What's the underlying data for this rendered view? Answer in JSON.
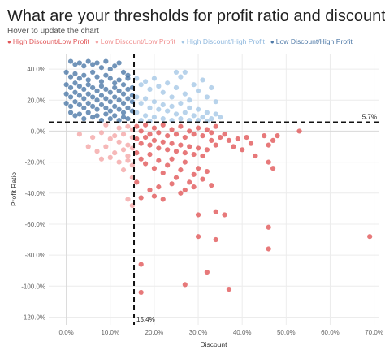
{
  "header": {
    "title": "What are your thresholds for profit ratio and discount?",
    "subtitle": "Hover to update the chart"
  },
  "legend": [
    {
      "label": "High Discount/Low Profit",
      "color": "#e15759"
    },
    {
      "label": "Low Discount/Low Profit",
      "color": "#f4a6a6"
    },
    {
      "label": "High Discount/High Profit",
      "color": "#a6c8e6"
    },
    {
      "label": "Low Discount/High Profit",
      "color": "#4e79a7"
    }
  ],
  "chart_data": {
    "type": "scatter",
    "xlabel": "Discount",
    "ylabel": "Profit Ratio",
    "xlim": [
      -0.04,
      0.71
    ],
    "ylim": [
      -1.25,
      0.5
    ],
    "x_ticks": [
      0,
      0.1,
      0.2,
      0.3,
      0.4,
      0.5,
      0.6,
      0.7
    ],
    "x_tick_labels": [
      "0.0%",
      "10.0%",
      "20.0%",
      "30.0%",
      "40.0%",
      "50.0%",
      "60.0%",
      "70.0%"
    ],
    "y_ticks": [
      0.4,
      0.2,
      0,
      -0.2,
      -0.4,
      -0.6,
      -0.8,
      -1.0,
      -1.2
    ],
    "y_tick_labels": [
      "40.0%",
      "20.0%",
      "0.0%",
      "-20.0%",
      "-40.0%",
      "-60.0%",
      "-80.0%",
      "-100.0%",
      "-120.0%"
    ],
    "grid": true,
    "reference_lines": {
      "discount": 0.154,
      "discount_label": "15.4%",
      "profit_ratio": 0.057,
      "profit_ratio_label": "5.7%"
    },
    "colors": {
      "high_disc_low_profit": "#e15759",
      "low_disc_low_profit": "#f4a6a6",
      "high_disc_high_profit": "#a6c8e6",
      "low_disc_high_profit": "#4e79a7"
    },
    "series": [
      {
        "name": "Low Discount/High Profit",
        "points": [
          [
            0.01,
            0.45
          ],
          [
            0.02,
            0.43
          ],
          [
            0.03,
            0.44
          ],
          [
            0.04,
            0.42
          ],
          [
            0.05,
            0.45
          ],
          [
            0.06,
            0.43
          ],
          [
            0.07,
            0.44
          ],
          [
            0.08,
            0.41
          ],
          [
            0.09,
            0.45
          ],
          [
            0.1,
            0.4
          ],
          [
            0.11,
            0.42
          ],
          [
            0.12,
            0.44
          ],
          [
            0.13,
            0.38
          ],
          [
            0.14,
            0.36
          ],
          [
            0.0,
            0.38
          ],
          [
            0.01,
            0.35
          ],
          [
            0.02,
            0.37
          ],
          [
            0.03,
            0.34
          ],
          [
            0.04,
            0.36
          ],
          [
            0.05,
            0.33
          ],
          [
            0.06,
            0.38
          ],
          [
            0.07,
            0.35
          ],
          [
            0.08,
            0.32
          ],
          [
            0.09,
            0.36
          ],
          [
            0.1,
            0.34
          ],
          [
            0.11,
            0.31
          ],
          [
            0.12,
            0.33
          ],
          [
            0.13,
            0.3
          ],
          [
            0.14,
            0.34
          ],
          [
            0.15,
            0.28
          ],
          [
            0.0,
            0.3
          ],
          [
            0.01,
            0.28
          ],
          [
            0.02,
            0.31
          ],
          [
            0.03,
            0.29
          ],
          [
            0.04,
            0.27
          ],
          [
            0.05,
            0.3
          ],
          [
            0.06,
            0.28
          ],
          [
            0.07,
            0.26
          ],
          [
            0.08,
            0.29
          ],
          [
            0.09,
            0.27
          ],
          [
            0.1,
            0.25
          ],
          [
            0.11,
            0.28
          ],
          [
            0.12,
            0.26
          ],
          [
            0.13,
            0.24
          ],
          [
            0.14,
            0.27
          ],
          [
            0.15,
            0.23
          ],
          [
            0.0,
            0.24
          ],
          [
            0.01,
            0.22
          ],
          [
            0.02,
            0.25
          ],
          [
            0.03,
            0.23
          ],
          [
            0.04,
            0.21
          ],
          [
            0.05,
            0.24
          ],
          [
            0.06,
            0.22
          ],
          [
            0.07,
            0.2
          ],
          [
            0.08,
            0.23
          ],
          [
            0.09,
            0.21
          ],
          [
            0.1,
            0.19
          ],
          [
            0.11,
            0.22
          ],
          [
            0.12,
            0.2
          ],
          [
            0.13,
            0.18
          ],
          [
            0.14,
            0.21
          ],
          [
            0.15,
            0.19
          ],
          [
            0.0,
            0.18
          ],
          [
            0.01,
            0.16
          ],
          [
            0.02,
            0.19
          ],
          [
            0.03,
            0.17
          ],
          [
            0.04,
            0.15
          ],
          [
            0.05,
            0.18
          ],
          [
            0.06,
            0.16
          ],
          [
            0.07,
            0.14
          ],
          [
            0.08,
            0.17
          ],
          [
            0.09,
            0.15
          ],
          [
            0.1,
            0.13
          ],
          [
            0.11,
            0.16
          ],
          [
            0.12,
            0.14
          ],
          [
            0.13,
            0.12
          ],
          [
            0.14,
            0.15
          ],
          [
            0.15,
            0.13
          ],
          [
            0.01,
            0.12
          ],
          [
            0.03,
            0.11
          ],
          [
            0.05,
            0.12
          ],
          [
            0.07,
            0.1
          ],
          [
            0.09,
            0.11
          ],
          [
            0.11,
            0.1
          ],
          [
            0.13,
            0.09
          ],
          [
            0.06,
            0.09
          ],
          [
            0.1,
            0.08
          ],
          [
            0.14,
            0.08
          ],
          [
            0.08,
            0.07
          ],
          [
            0.12,
            0.07
          ],
          [
            0.02,
            0.1
          ],
          [
            0.04,
            0.08
          ]
        ]
      },
      {
        "name": "High Discount/High Profit",
        "points": [
          [
            0.16,
            0.34
          ],
          [
            0.17,
            0.3
          ],
          [
            0.18,
            0.32
          ],
          [
            0.19,
            0.27
          ],
          [
            0.2,
            0.34
          ],
          [
            0.21,
            0.29
          ],
          [
            0.22,
            0.25
          ],
          [
            0.23,
            0.31
          ],
          [
            0.24,
            0.22
          ],
          [
            0.25,
            0.38
          ],
          [
            0.25,
            0.28
          ],
          [
            0.26,
            0.35
          ],
          [
            0.27,
            0.24
          ],
          [
            0.27,
            0.38
          ],
          [
            0.28,
            0.2
          ],
          [
            0.29,
            0.3
          ],
          [
            0.3,
            0.26
          ],
          [
            0.31,
            0.33
          ],
          [
            0.32,
            0.22
          ],
          [
            0.33,
            0.28
          ],
          [
            0.34,
            0.19
          ],
          [
            0.16,
            0.22
          ],
          [
            0.17,
            0.18
          ],
          [
            0.18,
            0.21
          ],
          [
            0.19,
            0.15
          ],
          [
            0.2,
            0.19
          ],
          [
            0.21,
            0.14
          ],
          [
            0.22,
            0.17
          ],
          [
            0.23,
            0.13
          ],
          [
            0.24,
            0.16
          ],
          [
            0.25,
            0.11
          ],
          [
            0.26,
            0.18
          ],
          [
            0.27,
            0.12
          ],
          [
            0.28,
            0.15
          ],
          [
            0.29,
            0.1
          ],
          [
            0.3,
            0.14
          ],
          [
            0.31,
            0.09
          ],
          [
            0.32,
            0.12
          ],
          [
            0.33,
            0.08
          ],
          [
            0.34,
            0.11
          ],
          [
            0.35,
            0.09
          ],
          [
            0.16,
            0.12
          ],
          [
            0.18,
            0.1
          ],
          [
            0.2,
            0.09
          ],
          [
            0.22,
            0.08
          ],
          [
            0.24,
            0.07
          ],
          [
            0.26,
            0.08
          ],
          [
            0.28,
            0.07
          ],
          [
            0.3,
            0.07
          ],
          [
            0.32,
            0.065
          ],
          [
            0.17,
            0.07
          ],
          [
            0.19,
            0.065
          ]
        ]
      },
      {
        "name": "Low Discount/Low Profit",
        "points": [
          [
            0.03,
            -0.02
          ],
          [
            0.06,
            -0.04
          ],
          [
            0.08,
            -0.01
          ],
          [
            0.1,
            -0.05
          ],
          [
            0.11,
            -0.03
          ],
          [
            0.12,
            -0.07
          ],
          [
            0.13,
            -0.02
          ],
          [
            0.14,
            -0.09
          ],
          [
            0.15,
            -0.04
          ],
          [
            0.05,
            -0.1
          ],
          [
            0.07,
            -0.13
          ],
          [
            0.09,
            -0.1
          ],
          [
            0.11,
            -0.14
          ],
          [
            0.13,
            -0.12
          ],
          [
            0.14,
            -0.16
          ],
          [
            0.15,
            -0.11
          ],
          [
            0.08,
            -0.18
          ],
          [
            0.1,
            -0.17
          ],
          [
            0.12,
            -0.2
          ],
          [
            0.14,
            -0.19
          ],
          [
            0.15,
            -0.22
          ],
          [
            0.13,
            -0.25
          ],
          [
            0.15,
            -0.3
          ],
          [
            0.14,
            -0.44
          ],
          [
            0.15,
            -0.48
          ],
          [
            0.12,
            0.02
          ],
          [
            0.14,
            0.03
          ],
          [
            0.15,
            0.01
          ],
          [
            0.09,
            0.04
          ]
        ]
      },
      {
        "name": "High Discount/Low Profit",
        "points": [
          [
            0.16,
            0.03
          ],
          [
            0.17,
            0.0
          ],
          [
            0.18,
            0.04
          ],
          [
            0.19,
            -0.02
          ],
          [
            0.2,
            0.02
          ],
          [
            0.21,
            -0.01
          ],
          [
            0.22,
            0.04
          ],
          [
            0.23,
            -0.03
          ],
          [
            0.24,
            0.01
          ],
          [
            0.25,
            -0.02
          ],
          [
            0.26,
            0.03
          ],
          [
            0.27,
            -0.04
          ],
          [
            0.28,
            0.0
          ],
          [
            0.29,
            -0.02
          ],
          [
            0.3,
            0.02
          ],
          [
            0.31,
            -0.03
          ],
          [
            0.32,
            0.01
          ],
          [
            0.33,
            -0.01
          ],
          [
            0.34,
            0.03
          ],
          [
            0.16,
            -0.05
          ],
          [
            0.17,
            -0.08
          ],
          [
            0.18,
            -0.04
          ],
          [
            0.19,
            -0.09
          ],
          [
            0.2,
            -0.06
          ],
          [
            0.21,
            -0.11
          ],
          [
            0.22,
            -0.07
          ],
          [
            0.23,
            -0.12
          ],
          [
            0.24,
            -0.08
          ],
          [
            0.25,
            -0.13
          ],
          [
            0.26,
            -0.09
          ],
          [
            0.27,
            -0.14
          ],
          [
            0.28,
            -0.1
          ],
          [
            0.29,
            -0.15
          ],
          [
            0.3,
            -0.11
          ],
          [
            0.31,
            -0.16
          ],
          [
            0.32,
            -0.12
          ],
          [
            0.33,
            -0.06
          ],
          [
            0.34,
            -0.09
          ],
          [
            0.35,
            -0.04
          ],
          [
            0.16,
            -0.14
          ],
          [
            0.17,
            -0.18
          ],
          [
            0.18,
            -0.21
          ],
          [
            0.19,
            -0.15
          ],
          [
            0.2,
            -0.24
          ],
          [
            0.21,
            -0.19
          ],
          [
            0.22,
            -0.27
          ],
          [
            0.23,
            -0.22
          ],
          [
            0.24,
            -0.18
          ],
          [
            0.25,
            -0.3
          ],
          [
            0.26,
            -0.25
          ],
          [
            0.27,
            -0.2
          ],
          [
            0.28,
            -0.33
          ],
          [
            0.29,
            -0.28
          ],
          [
            0.3,
            -0.24
          ],
          [
            0.31,
            -0.31
          ],
          [
            0.32,
            -0.26
          ],
          [
            0.33,
            -0.35
          ],
          [
            0.16,
            -0.33
          ],
          [
            0.17,
            -0.43
          ],
          [
            0.19,
            -0.38
          ],
          [
            0.2,
            -0.42
          ],
          [
            0.21,
            -0.36
          ],
          [
            0.22,
            -0.44
          ],
          [
            0.24,
            -0.34
          ],
          [
            0.26,
            -0.4
          ],
          [
            0.27,
            -0.38
          ],
          [
            0.29,
            -0.36
          ],
          [
            0.36,
            -0.02
          ],
          [
            0.37,
            -0.06
          ],
          [
            0.38,
            -0.1
          ],
          [
            0.39,
            -0.05
          ],
          [
            0.4,
            -0.12
          ],
          [
            0.41,
            -0.04
          ],
          [
            0.42,
            -0.08
          ],
          [
            0.43,
            -0.16
          ],
          [
            0.45,
            -0.03
          ],
          [
            0.46,
            -0.09
          ],
          [
            0.47,
            -0.06
          ],
          [
            0.47,
            -0.24
          ],
          [
            0.48,
            -0.03
          ],
          [
            0.53,
            0.0
          ],
          [
            0.46,
            -0.2
          ],
          [
            0.3,
            -0.54
          ],
          [
            0.34,
            -0.52
          ],
          [
            0.36,
            -0.54
          ],
          [
            0.3,
            -0.68
          ],
          [
            0.34,
            -0.7
          ],
          [
            0.46,
            -0.62
          ],
          [
            0.46,
            -0.76
          ],
          [
            0.69,
            -0.68
          ],
          [
            0.17,
            -0.86
          ],
          [
            0.27,
            -0.99
          ],
          [
            0.32,
            -0.91
          ],
          [
            0.37,
            -1.02
          ],
          [
            0.17,
            -1.04
          ]
        ]
      }
    ]
  }
}
